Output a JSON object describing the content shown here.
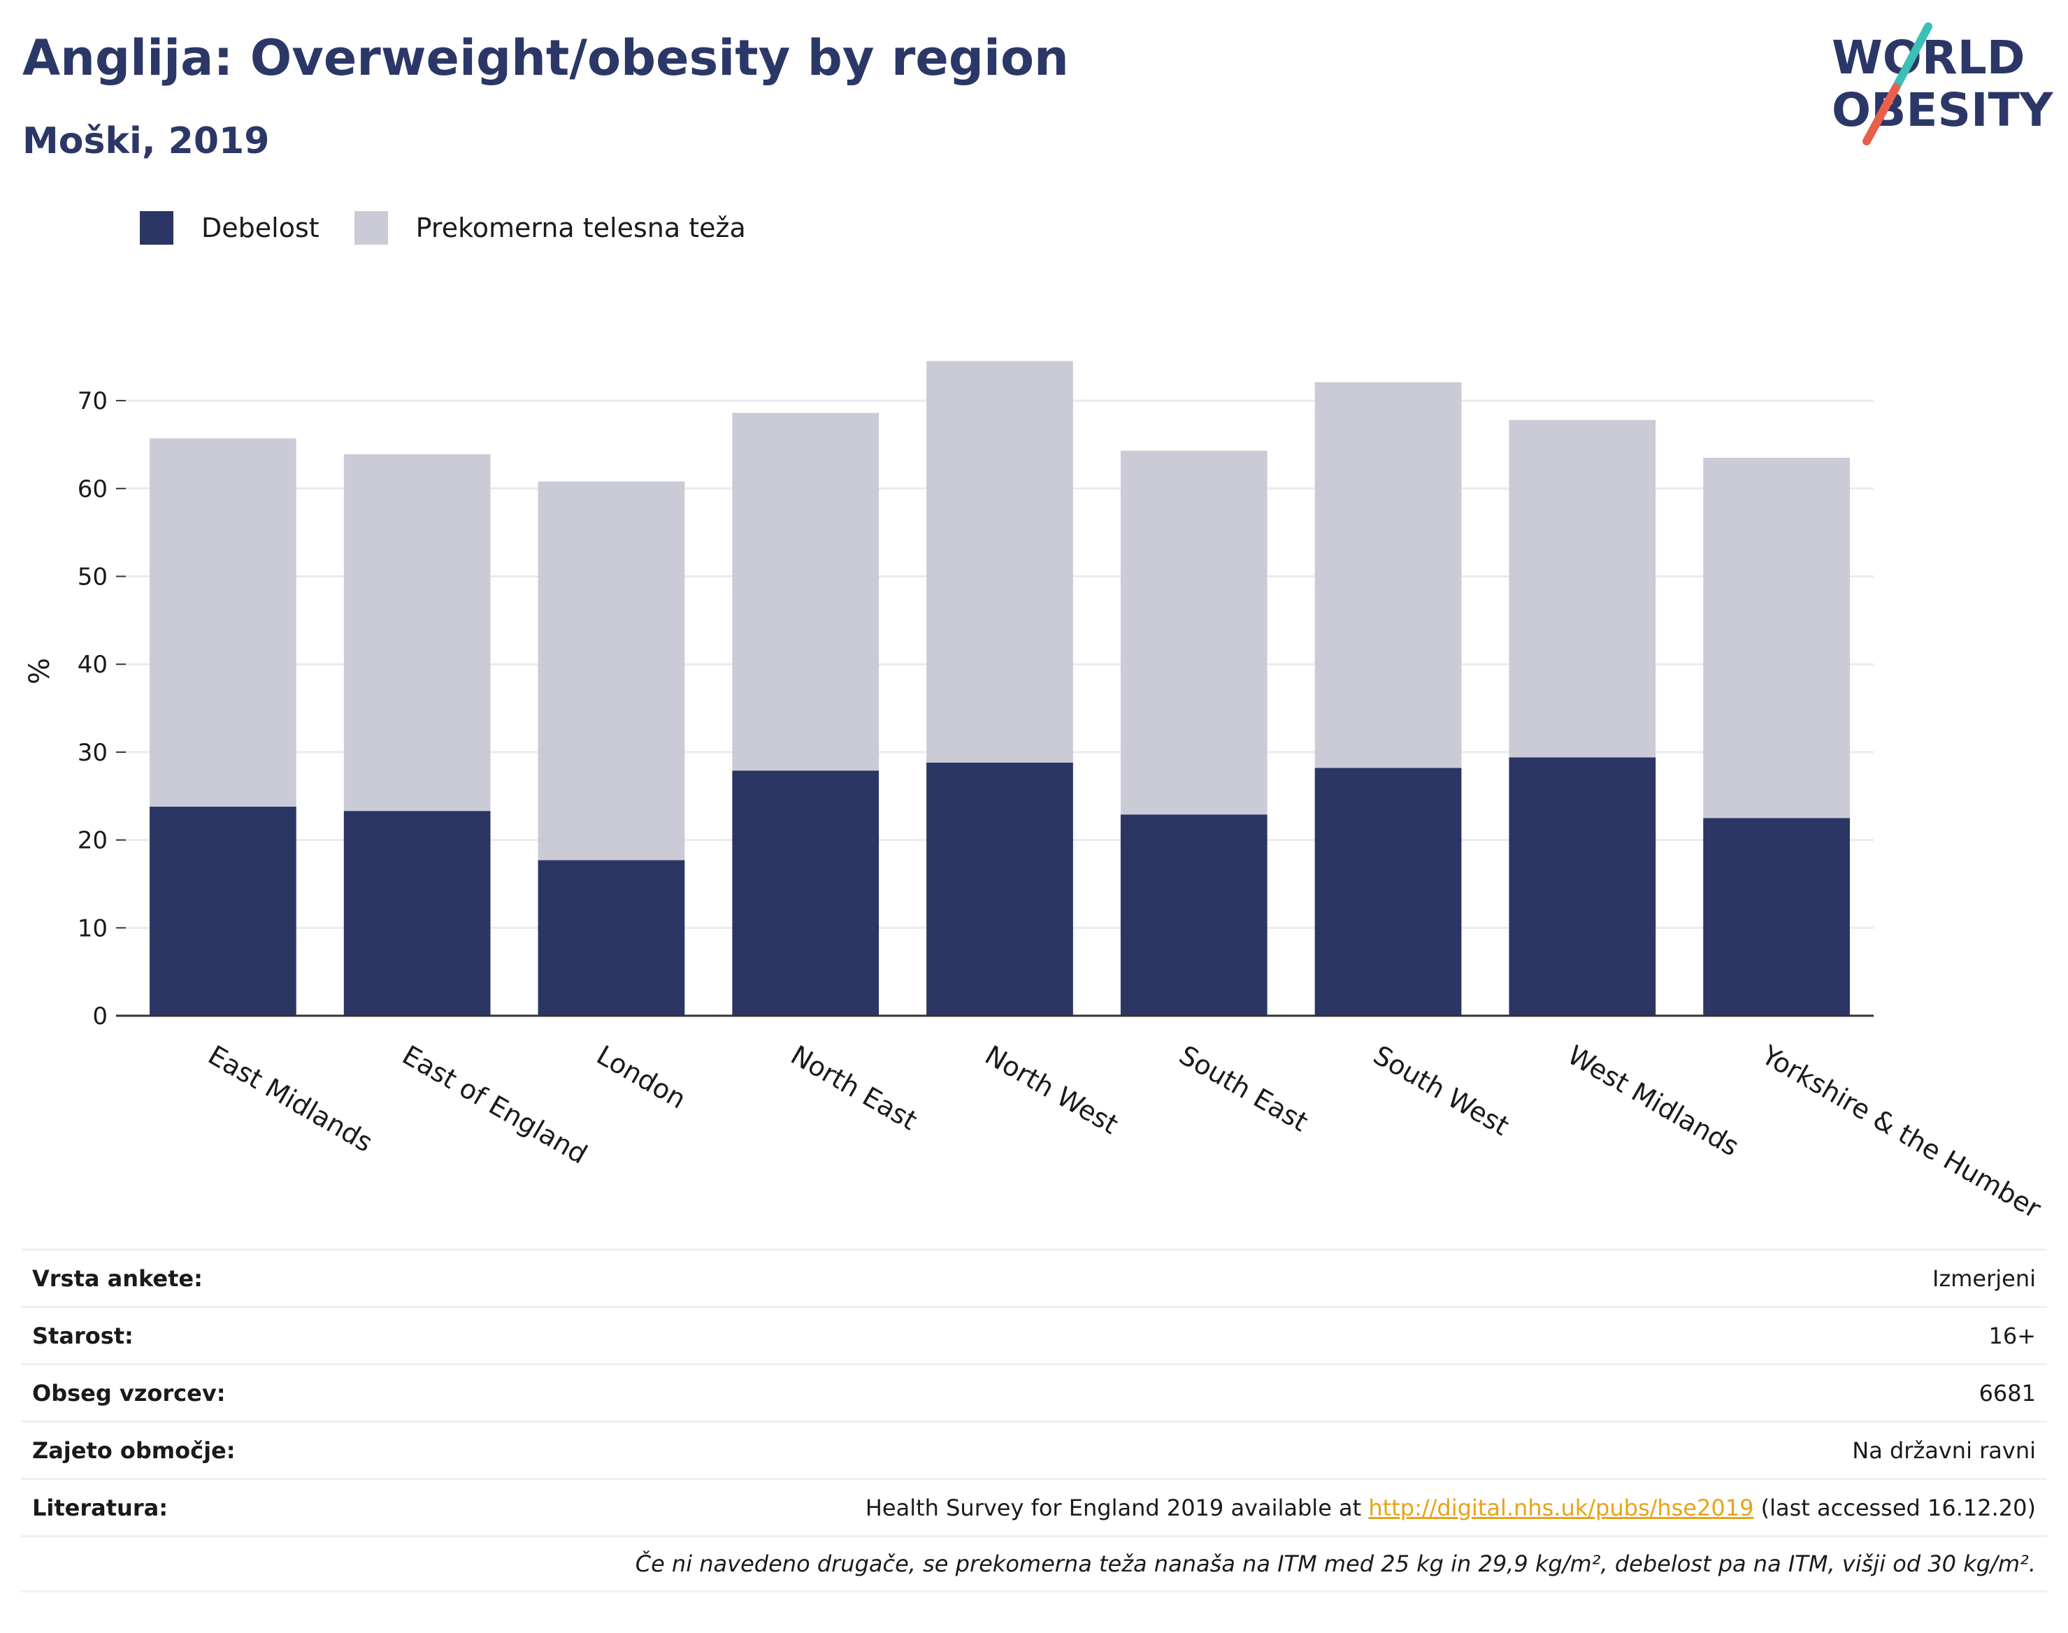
{
  "header": {
    "title": "Anglija: Overweight/obesity by region",
    "subtitle": "Moški, 2019"
  },
  "logo": {
    "line1": "WORLD",
    "line2": "OBESITY"
  },
  "colors": {
    "obesity": "#2b3664",
    "overweight": "#cacbd7",
    "title": "#2b3766",
    "link": "#e8a317"
  },
  "chart_data": {
    "type": "bar",
    "stacked": true,
    "categories": [
      "East Midlands",
      "East of England",
      "London",
      "North East",
      "North West",
      "South East",
      "South West",
      "West Midlands",
      "Yorkshire & the Humber"
    ],
    "series": [
      {
        "name": "Debelost",
        "values": [
          23.8,
          23.3,
          17.7,
          27.9,
          28.8,
          22.9,
          28.2,
          29.4,
          22.5
        ]
      },
      {
        "name": "Prekomerna telesna teža",
        "values": [
          41.9,
          40.6,
          43.1,
          40.7,
          45.7,
          41.4,
          43.9,
          38.4,
          41.0
        ]
      }
    ],
    "ylabel": "%",
    "ylim": [
      0,
      80
    ],
    "yticks": [
      0,
      10,
      20,
      30,
      40,
      50,
      60,
      70
    ],
    "grid": true,
    "legend": "top-left"
  },
  "info": {
    "rows": [
      {
        "label": "Vrsta ankete:",
        "value": "Izmerjeni"
      },
      {
        "label": "Starost:",
        "value": "16+"
      },
      {
        "label": "Obseg vzorcev:",
        "value": "6681"
      },
      {
        "label": "Zajeto območje:",
        "value": "Na državni ravni"
      }
    ],
    "literature": {
      "label": "Literatura:",
      "prefix": "Health Survey for England 2019 available at ",
      "link": "http://digital.nhs.uk/pubs/hse2019",
      "suffix": " (last accessed 16.12.20)"
    },
    "note": "Če ni navedeno drugače, se prekomerna teža nanaša na ITM med 25 kg in 29,9 kg/m², debelost pa na ITM, višji od 30 kg/m²."
  }
}
